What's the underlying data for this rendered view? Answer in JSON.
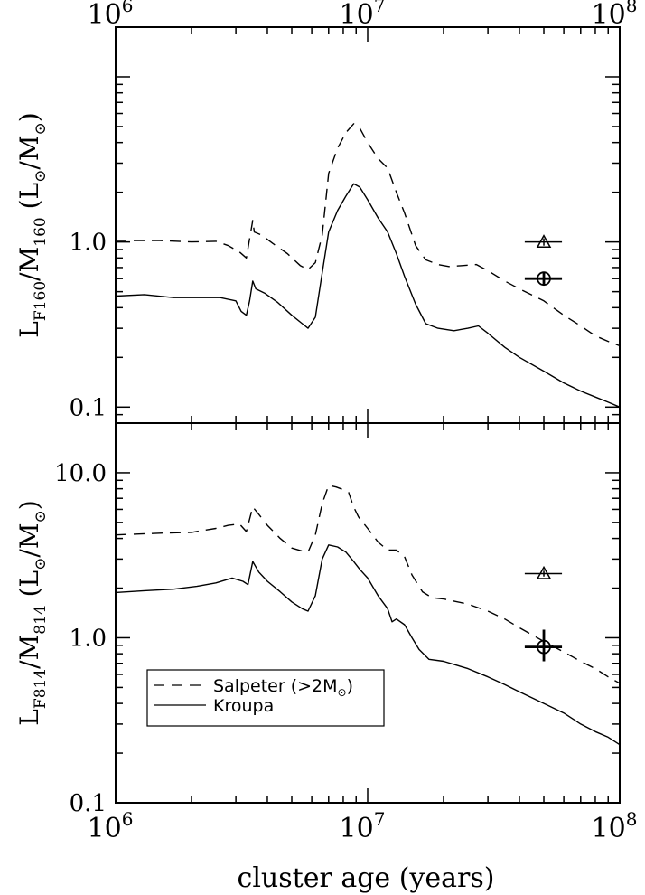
{
  "chart_data": [
    {
      "panel": "top",
      "type": "line",
      "ylabel": {
        "main": "L",
        "sub1": "F160",
        "mid": "/M",
        "sub2": "160",
        "unit": " (L",
        "sun1": "⊙",
        "unit_mid": "/M",
        "sun2": "⊙",
        "unit_end": ")"
      },
      "xscale": "log",
      "yscale": "log",
      "xlim": [
        1000000,
        100000000
      ],
      "ylim": [
        0.08,
        20
      ],
      "yticks": [
        {
          "value": 0.1,
          "label": "0.1"
        },
        {
          "value": 1.0,
          "label": "1.0"
        }
      ],
      "series": [
        {
          "style": "dashed",
          "points": [
            [
              1000000.0,
              1.02
            ],
            [
              1500000.0,
              1.02
            ],
            [
              2000000.0,
              1.0
            ],
            [
              2500000.0,
              1.01
            ],
            [
              2800000.0,
              0.95
            ],
            [
              3100000.0,
              0.87
            ],
            [
              3300000.0,
              0.8
            ],
            [
              3500000.0,
              1.35
            ],
            [
              3550000.0,
              1.15
            ],
            [
              3800000.0,
              1.1
            ],
            [
              4200000.0,
              0.98
            ],
            [
              4800000.0,
              0.85
            ],
            [
              5400000.0,
              0.72
            ],
            [
              5800000.0,
              0.68
            ],
            [
              6200000.0,
              0.75
            ],
            [
              6600000.0,
              1.1
            ],
            [
              7000000.0,
              2.6
            ],
            [
              7600000.0,
              3.7
            ],
            [
              8200000.0,
              4.6
            ],
            [
              8800000.0,
              5.2
            ],
            [
              9300000.0,
              4.9
            ],
            [
              10000000.0,
              4.0
            ],
            [
              11000000.0,
              3.2
            ],
            [
              12000000.0,
              2.8
            ],
            [
              13000000.0,
              2.0
            ],
            [
              14000000.0,
              1.5
            ],
            [
              15500000.0,
              0.95
            ],
            [
              17000000.0,
              0.78
            ],
            [
              19000000.0,
              0.73
            ],
            [
              21000000.0,
              0.71
            ],
            [
              24000000.0,
              0.72
            ],
            [
              27000000.0,
              0.73
            ],
            [
              30000000.0,
              0.67
            ],
            [
              35000000.0,
              0.58
            ],
            [
              40000000.0,
              0.52
            ],
            [
              50000000.0,
              0.44
            ],
            [
              60000000.0,
              0.36
            ],
            [
              70000000.0,
              0.31
            ],
            [
              80000000.0,
              0.27
            ],
            [
              90000000.0,
              0.25
            ],
            [
              100000000.0,
              0.235
            ]
          ]
        },
        {
          "style": "solid",
          "points": [
            [
              1000000.0,
              0.47
            ],
            [
              1300000.0,
              0.48
            ],
            [
              1700000.0,
              0.46
            ],
            [
              2100000.0,
              0.46
            ],
            [
              2600000.0,
              0.46
            ],
            [
              3000000.0,
              0.44
            ],
            [
              3150000.0,
              0.38
            ],
            [
              3300000.0,
              0.36
            ],
            [
              3400000.0,
              0.44
            ],
            [
              3500000.0,
              0.58
            ],
            [
              3600000.0,
              0.52
            ],
            [
              3900000.0,
              0.49
            ],
            [
              4400000.0,
              0.43
            ],
            [
              5000000.0,
              0.36
            ],
            [
              5500000.0,
              0.32
            ],
            [
              5800000.0,
              0.3
            ],
            [
              6200000.0,
              0.35
            ],
            [
              6600000.0,
              0.65
            ],
            [
              7000000.0,
              1.15
            ],
            [
              7600000.0,
              1.55
            ],
            [
              8200000.0,
              1.9
            ],
            [
              8800000.0,
              2.25
            ],
            [
              9300000.0,
              2.15
            ],
            [
              10000000.0,
              1.8
            ],
            [
              11000000.0,
              1.4
            ],
            [
              12000000.0,
              1.15
            ],
            [
              13000000.0,
              0.85
            ],
            [
              14000000.0,
              0.62
            ],
            [
              15500000.0,
              0.42
            ],
            [
              17000000.0,
              0.32
            ],
            [
              19000000.0,
              0.3
            ],
            [
              22000000.0,
              0.29
            ],
            [
              25000000.0,
              0.3
            ],
            [
              27500000.0,
              0.31
            ],
            [
              30000000.0,
              0.28
            ],
            [
              35000000.0,
              0.23
            ],
            [
              40000000.0,
              0.2
            ],
            [
              50000000.0,
              0.165
            ],
            [
              60000000.0,
              0.14
            ],
            [
              70000000.0,
              0.125
            ],
            [
              80000000.0,
              0.115
            ],
            [
              90000000.0,
              0.107
            ],
            [
              100000000.0,
              0.1
            ]
          ]
        }
      ],
      "markers": [
        {
          "shape": "triangle",
          "x": 50000000,
          "y": 1.0,
          "xerr": [
            42000000,
            59000000
          ],
          "yerr": [
            0.95,
            1.05
          ],
          "bold": false
        },
        {
          "shape": "circle",
          "x": 50000000,
          "y": 0.6,
          "xerr": [
            42000000,
            59000000
          ],
          "yerr": [
            0.55,
            0.66
          ],
          "bold": true
        }
      ]
    },
    {
      "panel": "bottom",
      "type": "line",
      "ylabel": {
        "main": "L",
        "sub1": "F814",
        "mid": "/M",
        "sub2": "814",
        "unit": " (L",
        "sun1": "⊙",
        "unit_mid": "/M",
        "sun2": "⊙",
        "unit_end": ")"
      },
      "xscale": "log",
      "yscale": "log",
      "xlim": [
        1000000,
        100000000
      ],
      "ylim": [
        0.1,
        20
      ],
      "xlabel": "cluster age (years)",
      "xticks": [
        {
          "value": 1000000,
          "base": "10",
          "exp": "6"
        },
        {
          "value": 10000000,
          "base": "10",
          "exp": "7"
        },
        {
          "value": 100000000,
          "base": "10",
          "exp": "8"
        }
      ],
      "yticks": [
        {
          "value": 0.1,
          "label": "0.1"
        },
        {
          "value": 1.0,
          "label": "1.0"
        },
        {
          "value": 10.0,
          "label": "10.0"
        }
      ],
      "legend": {
        "placement": "bottom-left",
        "entries": [
          {
            "style": "dashed",
            "label": "Salpeter (>2M",
            "sun": "⊙",
            "label_end": ")"
          },
          {
            "style": "solid",
            "label": "Kroupa"
          }
        ]
      },
      "series": [
        {
          "style": "dashed",
          "points": [
            [
              1000000.0,
              4.2
            ],
            [
              1500000.0,
              4.3
            ],
            [
              2000000.0,
              4.35
            ],
            [
              2500000.0,
              4.6
            ],
            [
              2800000.0,
              4.8
            ],
            [
              3100000.0,
              4.9
            ],
            [
              3300000.0,
              4.4
            ],
            [
              3500000.0,
              6.2
            ],
            [
              3700000.0,
              5.6
            ],
            [
              4000000.0,
              4.8
            ],
            [
              4500000.0,
              4.0
            ],
            [
              5000000.0,
              3.5
            ],
            [
              5500000.0,
              3.35
            ],
            [
              5800000.0,
              3.3
            ],
            [
              6200000.0,
              4.2
            ],
            [
              6600000.0,
              6.5
            ],
            [
              7000000.0,
              8.4
            ],
            [
              7500000.0,
              8.2
            ],
            [
              8000000.0,
              7.9
            ],
            [
              8400000.0,
              7.6
            ],
            [
              8800000.0,
              6.2
            ],
            [
              9200000.0,
              5.4
            ],
            [
              10000000.0,
              4.6
            ],
            [
              11000000.0,
              3.8
            ],
            [
              12000000.0,
              3.4
            ],
            [
              13000000.0,
              3.4
            ],
            [
              14000000.0,
              3.1
            ],
            [
              15000000.0,
              2.4
            ],
            [
              16500000.0,
              1.9
            ],
            [
              18000000.0,
              1.75
            ],
            [
              20000000.0,
              1.72
            ],
            [
              25000000.0,
              1.6
            ],
            [
              30000000.0,
              1.45
            ],
            [
              35000000.0,
              1.3
            ],
            [
              40000000.0,
              1.15
            ],
            [
              50000000.0,
              0.95
            ],
            [
              60000000.0,
              0.82
            ],
            [
              70000000.0,
              0.72
            ],
            [
              80000000.0,
              0.65
            ],
            [
              90000000.0,
              0.58
            ],
            [
              100000000.0,
              0.53
            ]
          ]
        },
        {
          "style": "solid",
          "points": [
            [
              1000000.0,
              1.88
            ],
            [
              1300000.0,
              1.93
            ],
            [
              1700000.0,
              1.97
            ],
            [
              2100000.0,
              2.05
            ],
            [
              2500000.0,
              2.15
            ],
            [
              2900000.0,
              2.3
            ],
            [
              3200000.0,
              2.2
            ],
            [
              3350000.0,
              2.1
            ],
            [
              3500000.0,
              2.9
            ],
            [
              3700000.0,
              2.5
            ],
            [
              4000000.0,
              2.2
            ],
            [
              4500000.0,
              1.9
            ],
            [
              5000000.0,
              1.65
            ],
            [
              5500000.0,
              1.5
            ],
            [
              5800000.0,
              1.45
            ],
            [
              6200000.0,
              1.8
            ],
            [
              6600000.0,
              3.0
            ],
            [
              7000000.0,
              3.65
            ],
            [
              7600000.0,
              3.55
            ],
            [
              8200000.0,
              3.3
            ],
            [
              8800000.0,
              2.9
            ],
            [
              9300000.0,
              2.6
            ],
            [
              10000000.0,
              2.3
            ],
            [
              11000000.0,
              1.8
            ],
            [
              12000000.0,
              1.5
            ],
            [
              12500000.0,
              1.25
            ],
            [
              13000000.0,
              1.3
            ],
            [
              14000000.0,
              1.2
            ],
            [
              15000000.0,
              1.0
            ],
            [
              16000000.0,
              0.85
            ],
            [
              17500000.0,
              0.74
            ],
            [
              20000000.0,
              0.72
            ],
            [
              25000000.0,
              0.65
            ],
            [
              30000000.0,
              0.58
            ],
            [
              35000000.0,
              0.52
            ],
            [
              40000000.0,
              0.47
            ],
            [
              50000000.0,
              0.4
            ],
            [
              60000000.0,
              0.35
            ],
            [
              70000000.0,
              0.3
            ],
            [
              80000000.0,
              0.27
            ],
            [
              90000000.0,
              0.25
            ],
            [
              100000000.0,
              0.225
            ]
          ]
        }
      ],
      "markers": [
        {
          "shape": "triangle",
          "x": 50000000,
          "y": 2.45,
          "xerr": [
            42000000,
            59000000
          ],
          "yerr": [
            2.35,
            2.55
          ],
          "bold": false
        },
        {
          "shape": "circle",
          "x": 50000000,
          "y": 0.88,
          "xerr": [
            42000000,
            59000000
          ],
          "yerr": [
            0.72,
            1.12
          ],
          "bold": true
        }
      ]
    }
  ]
}
